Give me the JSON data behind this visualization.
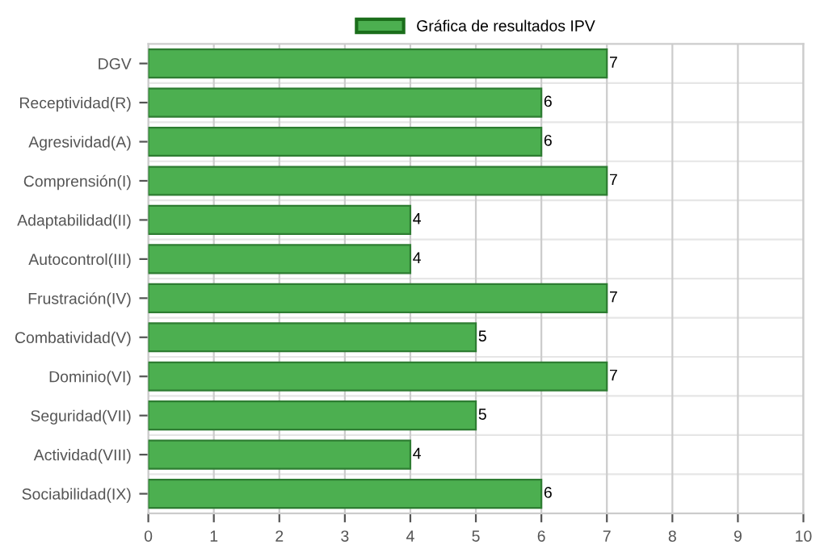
{
  "chart_data": {
    "type": "bar",
    "orientation": "horizontal",
    "categories": [
      "DGV",
      "Receptividad(R)",
      "Agresividad(A)",
      "Comprensión(I)",
      "Adaptabilidad(II)",
      "Autocontrol(III)",
      "Frustración(IV)",
      "Combatividad(V)",
      "Dominio(VI)",
      "Seguridad(VII)",
      "Actividad(VIII)",
      "Sociabilidad(IX)"
    ],
    "series": [
      {
        "name": "Gráfica de resultados IPV",
        "color": "#4caf50",
        "values": [
          7,
          6,
          6,
          7,
          4,
          4,
          7,
          5,
          7,
          5,
          4,
          6
        ]
      }
    ],
    "xlim": [
      0,
      10
    ],
    "xticks": [
      0,
      1,
      2,
      3,
      4,
      5,
      6,
      7,
      8,
      9,
      10
    ],
    "grid": true,
    "legend": "top",
    "data_labels": true
  }
}
